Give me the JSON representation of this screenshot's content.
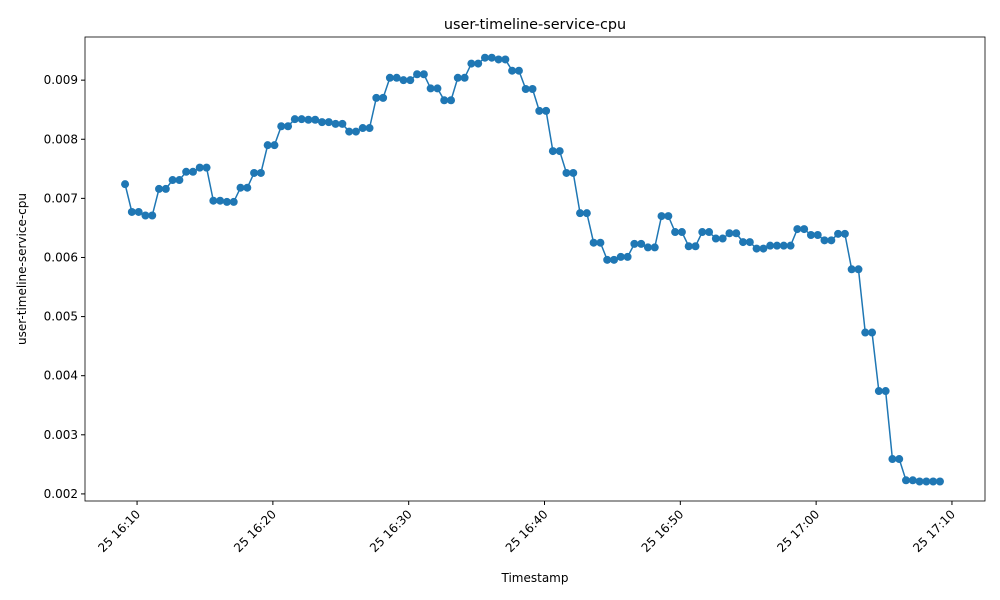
{
  "chart_data": {
    "type": "line",
    "title": "user-timeline-service-cpu",
    "x_label": "Timestamp",
    "y_label": "user-timeline-service-cpu",
    "x": [
      "25 16:09:07",
      "25 16:09:37",
      "25 16:10:07",
      "25 16:10:37",
      "25 16:11:07",
      "25 16:11:37",
      "25 16:12:07",
      "25 16:12:37",
      "25 16:13:07",
      "25 16:13:37",
      "25 16:14:07",
      "25 16:14:37",
      "25 16:15:07",
      "25 16:15:37",
      "25 16:16:07",
      "25 16:16:37",
      "25 16:17:07",
      "25 16:17:37",
      "25 16:18:07",
      "25 16:18:37",
      "25 16:19:07",
      "25 16:19:37",
      "25 16:20:07",
      "25 16:20:37",
      "25 16:21:07",
      "25 16:21:37",
      "25 16:22:07",
      "25 16:22:37",
      "25 16:23:07",
      "25 16:23:37",
      "25 16:24:07",
      "25 16:24:37",
      "25 16:25:07",
      "25 16:25:37",
      "25 16:26:07",
      "25 16:26:37",
      "25 16:27:07",
      "25 16:27:37",
      "25 16:28:07",
      "25 16:28:37",
      "25 16:29:07",
      "25 16:29:37",
      "25 16:30:07",
      "25 16:30:37",
      "25 16:31:07",
      "25 16:31:37",
      "25 16:32:07",
      "25 16:32:37",
      "25 16:33:07",
      "25 16:33:37",
      "25 16:34:07",
      "25 16:34:37",
      "25 16:35:07",
      "25 16:35:37",
      "25 16:36:07",
      "25 16:36:37",
      "25 16:37:07",
      "25 16:37:37",
      "25 16:38:07",
      "25 16:38:37",
      "25 16:39:07",
      "25 16:39:37",
      "25 16:40:07",
      "25 16:40:37",
      "25 16:41:07",
      "25 16:41:37",
      "25 16:42:07",
      "25 16:42:37",
      "25 16:43:07",
      "25 16:43:37",
      "25 16:44:07",
      "25 16:44:37",
      "25 16:45:07",
      "25 16:45:37",
      "25 16:46:07",
      "25 16:46:37",
      "25 16:47:07",
      "25 16:47:37",
      "25 16:48:07",
      "25 16:48:37",
      "25 16:49:07",
      "25 16:49:37",
      "25 16:50:07",
      "25 16:50:37",
      "25 16:51:07",
      "25 16:51:37",
      "25 16:52:07",
      "25 16:52:37",
      "25 16:53:07",
      "25 16:53:37",
      "25 16:54:07",
      "25 16:54:37",
      "25 16:55:07",
      "25 16:55:37",
      "25 16:56:07",
      "25 16:56:37",
      "25 16:57:07",
      "25 16:57:37",
      "25 16:58:07",
      "25 16:58:37",
      "25 16:59:07",
      "25 16:59:37",
      "25 17:00:07",
      "25 17:00:37",
      "25 17:01:07",
      "25 17:01:37",
      "25 17:02:07",
      "25 17:02:37",
      "25 17:03:07",
      "25 17:03:37",
      "25 17:04:07",
      "25 17:04:37",
      "25 17:05:07",
      "25 17:05:37",
      "25 17:06:07",
      "25 17:06:37",
      "25 17:07:07",
      "25 17:07:37",
      "25 17:08:07",
      "25 17:08:37",
      "25 17:09:07"
    ],
    "series": [
      {
        "color": "#1f77b4",
        "values": [
          0.00724,
          0.00677,
          0.00677,
          0.00671,
          0.00671,
          0.00716,
          0.00716,
          0.00731,
          0.00731,
          0.00745,
          0.00745,
          0.00752,
          0.00752,
          0.00696,
          0.00696,
          0.00694,
          0.00694,
          0.00718,
          0.00718,
          0.00743,
          0.00743,
          0.0079,
          0.0079,
          0.00822,
          0.00822,
          0.00834,
          0.00834,
          0.00833,
          0.00833,
          0.00829,
          0.00829,
          0.00826,
          0.00826,
          0.00813,
          0.00813,
          0.00819,
          0.00819,
          0.0087,
          0.0087,
          0.00904,
          0.00904,
          0.009,
          0.009,
          0.0091,
          0.0091,
          0.00886,
          0.00886,
          0.00866,
          0.00866,
          0.00904,
          0.00904,
          0.00928,
          0.00928,
          0.00938,
          0.00938,
          0.00935,
          0.00935,
          0.00916,
          0.00916,
          0.00885,
          0.00885,
          0.00848,
          0.00848,
          0.0078,
          0.0078,
          0.00743,
          0.00743,
          0.00675,
          0.00675,
          0.00625,
          0.00625,
          0.00596,
          0.00596,
          0.00601,
          0.00601,
          0.00623,
          0.00623,
          0.00617,
          0.00617,
          0.0067,
          0.0067,
          0.00643,
          0.00643,
          0.00619,
          0.00619,
          0.00643,
          0.00643,
          0.00632,
          0.00632,
          0.00641,
          0.00641,
          0.00626,
          0.00626,
          0.00615,
          0.00615,
          0.0062,
          0.0062,
          0.0062,
          0.0062,
          0.00648,
          0.00648,
          0.00638,
          0.00638,
          0.00629,
          0.00629,
          0.0064,
          0.0064,
          0.0058,
          0.0058,
          0.00473,
          0.00473,
          0.00374,
          0.00374,
          0.00259,
          0.00259,
          0.00223,
          0.00223,
          0.00221,
          0.00221,
          0.00221,
          0.00221
        ]
      }
    ],
    "xlim": [
      "25 16:06:10",
      "25 17:12:26"
    ],
    "xticks": [
      "25 16:10",
      "25 16:20",
      "25 16:30",
      "25 16:40",
      "25 16:50",
      "25 17:00",
      "25 17:10"
    ],
    "ylim": [
      0.00188,
      0.00973
    ],
    "yticks": [
      0.002,
      0.003,
      0.004,
      0.005,
      0.006,
      0.007,
      0.008,
      0.009
    ]
  }
}
